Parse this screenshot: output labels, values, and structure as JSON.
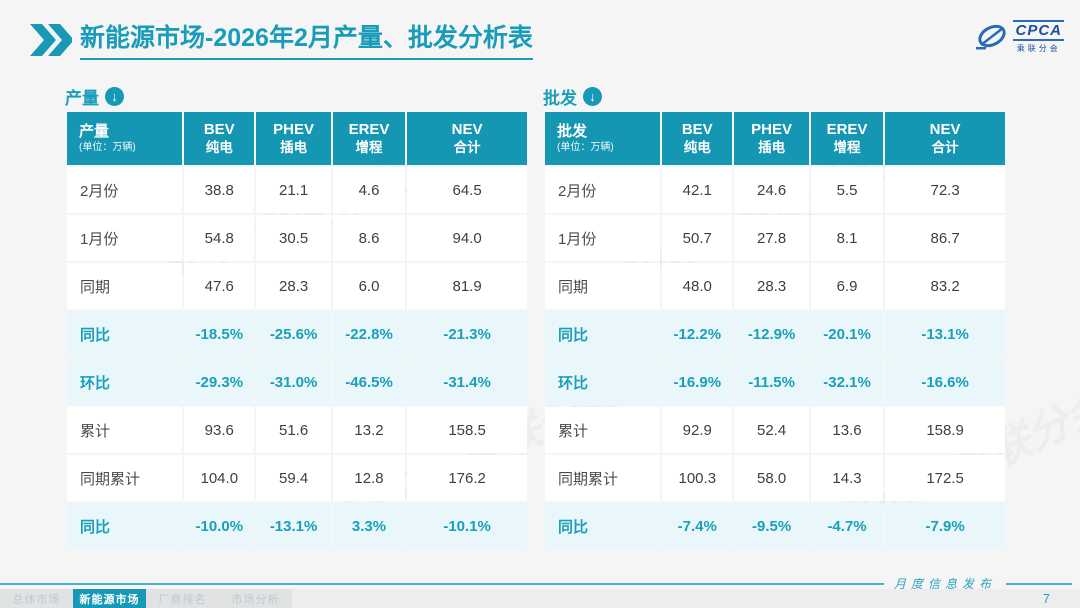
{
  "header": {
    "title_bold": "新能源市场",
    "title_rest": "-2026年2月产量、批发分析表"
  },
  "logo": {
    "text": "CPCA",
    "subtext": "乘联分会"
  },
  "icons": {
    "section_arrow": "↓"
  },
  "watermark": {
    "text": "CPCA 乘联分会"
  },
  "tables": [
    {
      "section_label": "产量",
      "corner_title": "产量",
      "corner_unit": "(单位：万辆)",
      "columns": [
        {
          "en": "BEV",
          "zh": "纯电"
        },
        {
          "en": "PHEV",
          "zh": "插电"
        },
        {
          "en": "EREV",
          "zh": "增程"
        },
        {
          "en": "NEV",
          "zh": "合计"
        }
      ],
      "rows": [
        {
          "label": "2月份",
          "values": [
            "38.8",
            "21.1",
            "4.6",
            "64.5"
          ],
          "highlight": false
        },
        {
          "label": "1月份",
          "values": [
            "54.8",
            "30.5",
            "8.6",
            "94.0"
          ],
          "highlight": false
        },
        {
          "label": "同期",
          "values": [
            "47.6",
            "28.3",
            "6.0",
            "81.9"
          ],
          "highlight": false
        },
        {
          "label": "同比",
          "values": [
            "-18.5%",
            "-25.6%",
            "-22.8%",
            "-21.3%"
          ],
          "highlight": true
        },
        {
          "label": "环比",
          "values": [
            "-29.3%",
            "-31.0%",
            "-46.5%",
            "-31.4%"
          ],
          "highlight": true
        },
        {
          "label": "累计",
          "values": [
            "93.6",
            "51.6",
            "13.2",
            "158.5"
          ],
          "highlight": false
        },
        {
          "label": "同期累计",
          "values": [
            "104.0",
            "59.4",
            "12.8",
            "176.2"
          ],
          "highlight": false
        },
        {
          "label": "同比",
          "values": [
            "-10.0%",
            "-13.1%",
            "3.3%",
            "-10.1%"
          ],
          "highlight": true
        }
      ]
    },
    {
      "section_label": "批发",
      "corner_title": "批发",
      "corner_unit": "(单位：万辆)",
      "columns": [
        {
          "en": "BEV",
          "zh": "纯电"
        },
        {
          "en": "PHEV",
          "zh": "插电"
        },
        {
          "en": "EREV",
          "zh": "增程"
        },
        {
          "en": "NEV",
          "zh": "合计"
        }
      ],
      "rows": [
        {
          "label": "2月份",
          "values": [
            "42.1",
            "24.6",
            "5.5",
            "72.3"
          ],
          "highlight": false
        },
        {
          "label": "1月份",
          "values": [
            "50.7",
            "27.8",
            "8.1",
            "86.7"
          ],
          "highlight": false
        },
        {
          "label": "同期",
          "values": [
            "48.0",
            "28.3",
            "6.9",
            "83.2"
          ],
          "highlight": false
        },
        {
          "label": "同比",
          "values": [
            "-12.2%",
            "-12.9%",
            "-20.1%",
            "-13.1%"
          ],
          "highlight": true
        },
        {
          "label": "环比",
          "values": [
            "-16.9%",
            "-11.5%",
            "-32.1%",
            "-16.6%"
          ],
          "highlight": true
        },
        {
          "label": "累计",
          "values": [
            "92.9",
            "52.4",
            "13.6",
            "158.9"
          ],
          "highlight": false
        },
        {
          "label": "同期累计",
          "values": [
            "100.3",
            "58.0",
            "14.3",
            "172.5"
          ],
          "highlight": false
        },
        {
          "label": "同比",
          "values": [
            "-7.4%",
            "-9.5%",
            "-4.7%",
            "-7.9%"
          ],
          "highlight": true
        }
      ]
    }
  ],
  "footer": {
    "release_label": "月度信息发布",
    "page_number": "7",
    "tabs": [
      {
        "label": "总体市场",
        "active": false
      },
      {
        "label": "新能源市场",
        "active": true
      },
      {
        "label": "厂商排名",
        "active": false
      },
      {
        "label": "市场分析",
        "active": false
      }
    ]
  },
  "colors": {
    "teal_header": "#1596b2",
    "teal_text": "#1a9fba",
    "highlight_bg": "#e9f7fb",
    "logo_blue": "#1d4f9c",
    "slide_bg": "#f5f5f6"
  }
}
